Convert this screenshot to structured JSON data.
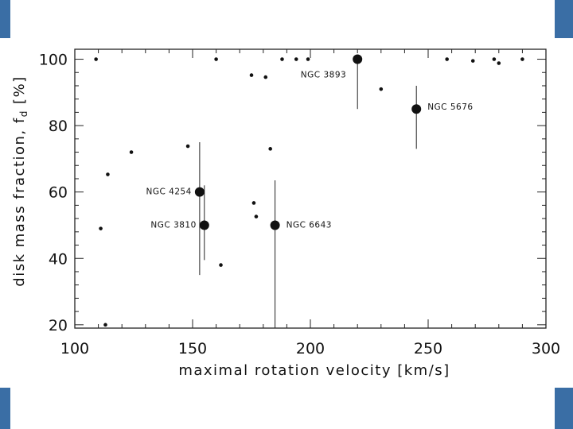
{
  "accent_color": "#3a6ea5",
  "chart_data": {
    "type": "scatter",
    "title": "",
    "xlabel": "maximal rotation velocity [km/s]",
    "ylabel": "disk mass fraction, f_d [%]",
    "ylabel_main": "disk mass fraction, f",
    "ylabel_sub": "d",
    "ylabel_unit": " [%]",
    "xlim": [
      100,
      300
    ],
    "ylim": [
      19,
      103
    ],
    "x_ticks": [
      100,
      150,
      200,
      250,
      300
    ],
    "y_ticks": [
      20,
      40,
      60,
      80,
      100
    ],
    "grid": false,
    "series": [
      {
        "marker": "small-dot",
        "points": [
          {
            "x": 109,
            "y": 100
          },
          {
            "x": 111,
            "y": 49
          },
          {
            "x": 113,
            "y": 20
          },
          {
            "x": 114,
            "y": 65.3
          },
          {
            "x": 124,
            "y": 72
          },
          {
            "x": 148,
            "y": 73.8
          },
          {
            "x": 160,
            "y": 100
          },
          {
            "x": 162,
            "y": 38
          },
          {
            "x": 175,
            "y": 95.2
          },
          {
            "x": 176,
            "y": 56.7
          },
          {
            "x": 177,
            "y": 52.6
          },
          {
            "x": 181,
            "y": 94.6
          },
          {
            "x": 183,
            "y": 73
          },
          {
            "x": 188,
            "y": 100
          },
          {
            "x": 194,
            "y": 100
          },
          {
            "x": 199,
            "y": 100
          },
          {
            "x": 230,
            "y": 91
          },
          {
            "x": 258,
            "y": 100
          },
          {
            "x": 269,
            "y": 99.5
          },
          {
            "x": 278,
            "y": 100
          },
          {
            "x": 280,
            "y": 98.8
          },
          {
            "x": 290,
            "y": 100
          }
        ]
      },
      {
        "marker": "large-dot-with-errorbar",
        "points": [
          {
            "x": 153,
            "y": 60,
            "ymin": 35,
            "ymax": 75,
            "label": "NGC 4254"
          },
          {
            "x": 155,
            "y": 50,
            "ymin": 39.5,
            "ymax": 62,
            "label": "NGC 3810"
          },
          {
            "x": 185,
            "y": 50,
            "ymin": 19,
            "ymax": 63.5,
            "label": "NGC 6643"
          },
          {
            "x": 220,
            "y": 100,
            "ymin": 85,
            "ymax": 100,
            "label": "NGC 3893"
          },
          {
            "x": 245,
            "y": 85,
            "ymin": 73,
            "ymax": 92,
            "label": "NGC 5676"
          }
        ]
      }
    ]
  }
}
